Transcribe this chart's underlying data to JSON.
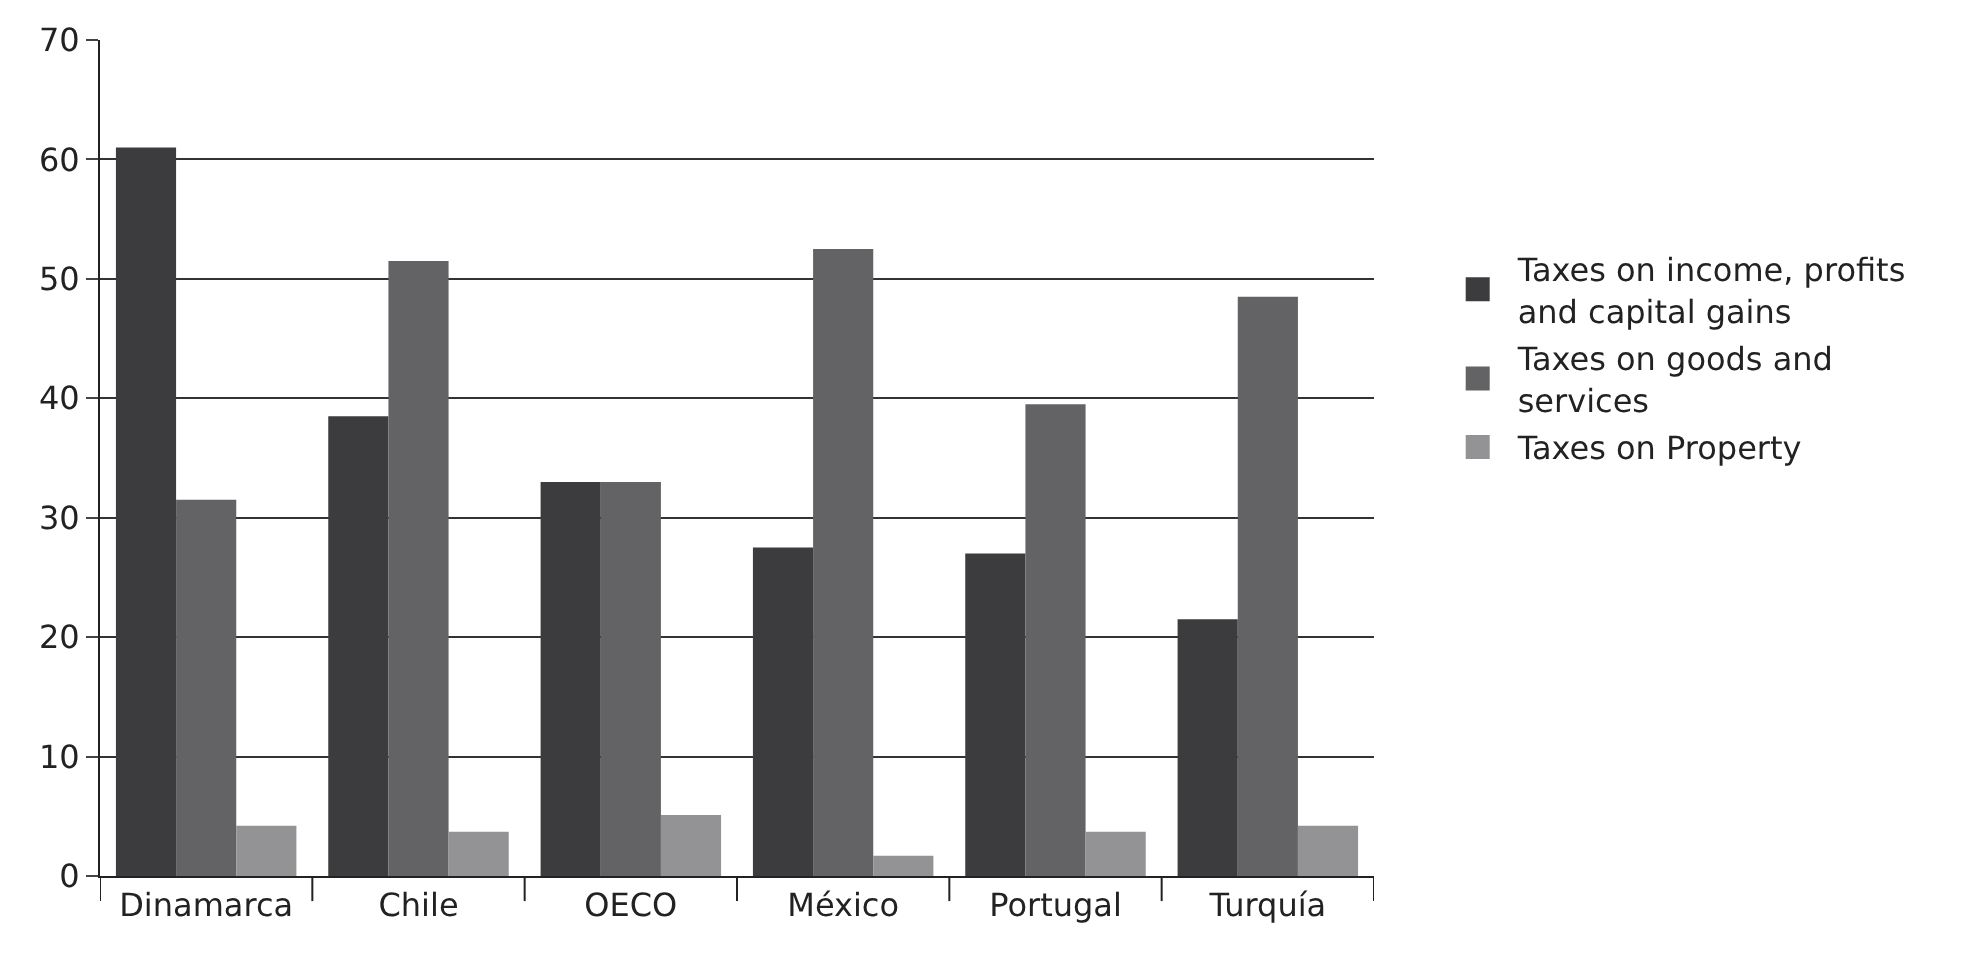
{
  "chart_data": {
    "type": "bar",
    "categories": [
      "Dinamarca",
      "Chile",
      "OECO",
      "México",
      "Portugal",
      "Turquía"
    ],
    "series": [
      {
        "name": "Taxes on income, profits and capital gains",
        "color": "#3c3c3e",
        "values": [
          61,
          38.5,
          33,
          27.5,
          27,
          21.5
        ]
      },
      {
        "name": "Taxes on goods and services",
        "color": "#636365",
        "values": [
          31.5,
          51.5,
          33,
          52.5,
          39.5,
          48.5
        ]
      },
      {
        "name": "Taxes on Property",
        "color": "#939395",
        "values": [
          4.2,
          3.7,
          5.1,
          1.7,
          3.7,
          4.2
        ]
      }
    ],
    "ylim": [
      0,
      70
    ],
    "yticks": [
      0,
      10,
      20,
      30,
      40,
      50,
      60,
      70
    ],
    "grid": "y",
    "legend": "right"
  }
}
